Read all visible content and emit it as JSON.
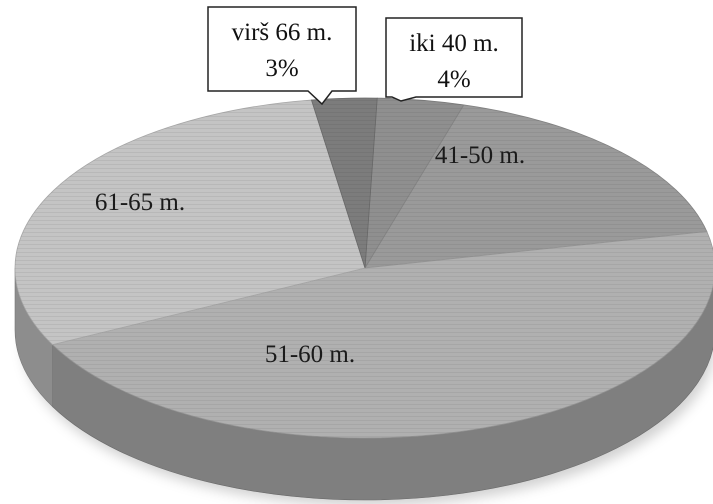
{
  "chart_data": {
    "type": "pie",
    "style": "3d",
    "title": "",
    "legend": "none",
    "slices": [
      {
        "label": "iki 40 m.",
        "value": 4,
        "value_label": "4%",
        "color": "#8f8f8f",
        "label_style": "callout"
      },
      {
        "label": "41-50 m.",
        "value": 17,
        "value_label": "",
        "color": "#9a9a9a",
        "label_style": "inside"
      },
      {
        "label": "51-60 m.",
        "value": 46,
        "value_label": "",
        "color": "#b0b0b0",
        "label_style": "inside"
      },
      {
        "label": "61-65 m.",
        "value": 30,
        "value_label": "",
        "color": "#c4c4c4",
        "label_style": "inside"
      },
      {
        "label": "virš 66 m.",
        "value": 3,
        "value_label": "3%",
        "color": "#7c7c7c",
        "label_style": "callout"
      }
    ]
  }
}
